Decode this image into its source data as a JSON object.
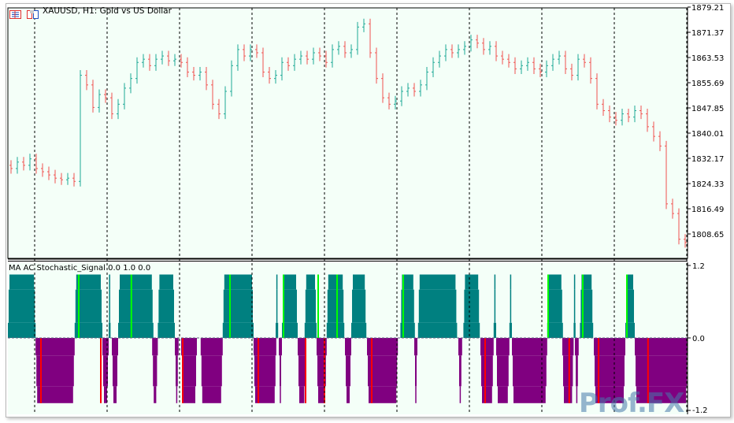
{
  "header": {
    "title": "XAUUSD, H1:  Gold vs US Dollar",
    "icons": [
      "chart-properties-icon",
      "template-icon"
    ]
  },
  "indicator": {
    "title": "MA AC Stochastic_Signal 0.0 1.0 0.0"
  },
  "colors": {
    "background": "#f4fff8",
    "bull": "#1ea896",
    "bear": "#f0524f",
    "hist_up": "#008080",
    "hist_down": "#800080",
    "signal_buy": "#00ff00",
    "signal_sell": "#ff0000",
    "grid": "#000000"
  },
  "watermark": "Prof.FX",
  "chart_data": [
    {
      "type": "ohlc",
      "title": "XAUUSD, H1:  Gold vs US Dollar",
      "price_axis_labels": [
        "1879.21",
        "1871.37",
        "1863.53",
        "1855.69",
        "1847.85",
        "1840.01",
        "1832.17",
        "1824.33",
        "1816.49",
        "1808.65"
      ],
      "ylim": [
        1804.5,
        1880.5
      ],
      "grid": "vertical dashed session separators",
      "close": [
        1829,
        1831,
        1830,
        1832,
        1829,
        1828,
        1827,
        1826,
        1825.5,
        1826,
        1825,
        1858,
        1855,
        1848,
        1852,
        1851,
        1846,
        1849,
        1854,
        1857,
        1862,
        1863,
        1861,
        1863,
        1864,
        1862.5,
        1863,
        1862,
        1859,
        1858,
        1859,
        1855,
        1849,
        1846,
        1853,
        1861,
        1866,
        1864,
        1866,
        1865,
        1859,
        1857,
        1858,
        1862,
        1861,
        1863,
        1864,
        1863,
        1865,
        1864,
        1862,
        1866,
        1867,
        1865,
        1866,
        1873,
        1874,
        1865,
        1857,
        1851,
        1849,
        1850,
        1853,
        1854,
        1853,
        1855,
        1859,
        1862,
        1864,
        1866,
        1865,
        1866,
        1867,
        1869,
        1868,
        1866,
        1867,
        1864,
        1863,
        1862,
        1860,
        1861,
        1862,
        1860,
        1859,
        1861,
        1863,
        1864,
        1860,
        1858,
        1863,
        1862,
        1857,
        1849,
        1847,
        1845,
        1844,
        1846,
        1845,
        1847,
        1846,
        1842,
        1839,
        1836,
        1818,
        1815,
        1807,
        1806
      ]
    },
    {
      "type": "bar",
      "title": "MA AC Stochastic_Signal 0.0 1.0 0.0",
      "axis_labels": [
        "1.2",
        "0.0",
        "-1.2"
      ],
      "ylim": [
        -1.2,
        1.2
      ],
      "up_blocks": [
        [
          0,
          4.4
        ],
        [
          10.6,
          15
        ],
        [
          16,
          16.3
        ],
        [
          17.5,
          23.1
        ],
        [
          23.8,
          26.5
        ],
        [
          34.1,
          39
        ],
        [
          42.5,
          42.9
        ],
        [
          43.5,
          46
        ],
        [
          47.1,
          49
        ],
        [
          50.6,
          53.4
        ],
        [
          54.5,
          56.9
        ],
        [
          62.3,
          64.6
        ],
        [
          65.1,
          71.3
        ],
        [
          72.3,
          74.9
        ],
        [
          77.1,
          77.5
        ],
        [
          79.6,
          80
        ],
        [
          85.6,
          88.1
        ],
        [
          89.8,
          90.1
        ],
        [
          90.8,
          92.9
        ],
        [
          98,
          99.5
        ]
      ],
      "down_blocks": [
        [
          4.4,
          10.6
        ],
        [
          15,
          16
        ],
        [
          16.5,
          17.5
        ],
        [
          22.9,
          23.8
        ],
        [
          26.5,
          27.1
        ],
        [
          27.5,
          30
        ],
        [
          30.6,
          34.1
        ],
        [
          39,
          42.6
        ],
        [
          43,
          43.5
        ],
        [
          46,
          47.3
        ],
        [
          49,
          50.6
        ],
        [
          53.5,
          54.5
        ],
        [
          57,
          61.9
        ],
        [
          64.5,
          65
        ],
        [
          71.5,
          72.1
        ],
        [
          75,
          77.1
        ],
        [
          77.5,
          79.6
        ],
        [
          80,
          85.6
        ],
        [
          88,
          89.8
        ],
        [
          90,
          90.6
        ],
        [
          93,
          98
        ],
        [
          99.5,
          107.9
        ]
      ],
      "levels": {
        "up": [
          0.25,
          0.8,
          1.05
        ],
        "down": [
          -0.29,
          -0.8,
          -1.08
        ]
      },
      "buy_signals": [
        11.25,
        19.6,
        35.25,
        43.75,
        49.25,
        52.25,
        62.75,
        85.75,
        91.25,
        98.25
      ],
      "sell_signals": [
        5.25,
        14.75,
        27.75,
        39.75,
        47.25,
        50.25,
        57.75,
        75.75,
        89.1,
        93.75,
        101.6
      ]
    }
  ]
}
